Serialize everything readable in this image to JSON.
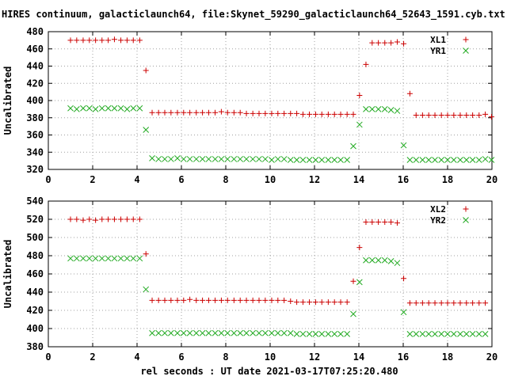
{
  "title": "HIRES continuum, galacticlaunch64, file:Skynet_59290_galacticlaunch64_52643_1591.cyb.txt",
  "xlabel": "rel seconds : UT date 2021-03-17T07:25:20.480",
  "colors": {
    "series_a": "#cc0000",
    "series_b": "#22aa22"
  },
  "chart_data": [
    {
      "type": "scatter",
      "ylabel": "Uncalibrated",
      "xlim": [
        0,
        20
      ],
      "ylim": [
        320,
        480
      ],
      "xticks": [
        0,
        2,
        4,
        6,
        8,
        10,
        12,
        14,
        16,
        18,
        20
      ],
      "yticks": [
        320,
        340,
        360,
        380,
        400,
        420,
        440,
        460,
        480
      ],
      "grid": true,
      "legend": "top-right",
      "series": [
        {
          "name": "XL1",
          "marker": "plus",
          "x": [
            1.0,
            1.28,
            1.57,
            1.85,
            2.13,
            2.42,
            2.7,
            2.98,
            3.27,
            3.55,
            3.83,
            4.12,
            4.4,
            4.68,
            4.97,
            5.25,
            5.53,
            5.82,
            6.1,
            6.38,
            6.67,
            6.95,
            7.23,
            7.52,
            7.8,
            8.08,
            8.37,
            8.65,
            8.93,
            9.22,
            9.5,
            9.78,
            10.07,
            10.35,
            10.63,
            10.92,
            11.2,
            11.48,
            11.77,
            12.05,
            12.33,
            12.62,
            12.9,
            13.18,
            13.47,
            13.75,
            14.03,
            14.32,
            14.6,
            14.88,
            15.17,
            15.45,
            15.73,
            16.02,
            16.3,
            16.58,
            16.87,
            17.15,
            17.43,
            17.72,
            18.0,
            18.28,
            18.57,
            18.85,
            19.13,
            19.42,
            19.7,
            19.98
          ],
          "y": [
            470,
            470,
            470,
            470,
            470,
            470,
            470,
            471,
            470,
            470,
            470,
            470,
            435,
            386,
            386,
            386,
            386,
            386,
            386,
            386,
            386,
            386,
            386,
            386,
            387,
            386,
            386,
            386,
            385,
            385,
            385,
            385,
            385,
            385,
            385,
            385,
            385,
            384,
            384,
            384,
            384,
            384,
            384,
            384,
            384,
            384,
            406,
            442,
            467,
            467,
            467,
            467,
            468,
            466,
            408,
            383,
            383,
            383,
            383,
            383,
            383,
            383,
            383,
            383,
            383,
            383,
            384,
            381
          ],
          "y_2": []
        },
        {
          "name": "YR1",
          "marker": "cross",
          "x": [
            1.0,
            1.28,
            1.57,
            1.85,
            2.13,
            2.42,
            2.7,
            2.98,
            3.27,
            3.55,
            3.83,
            4.12,
            4.4,
            4.68,
            4.97,
            5.25,
            5.53,
            5.82,
            6.1,
            6.38,
            6.67,
            6.95,
            7.23,
            7.52,
            7.8,
            8.08,
            8.37,
            8.65,
            8.93,
            9.22,
            9.5,
            9.78,
            10.07,
            10.35,
            10.63,
            10.92,
            11.2,
            11.48,
            11.77,
            12.05,
            12.33,
            12.62,
            12.9,
            13.18,
            13.47,
            13.75,
            14.03,
            14.32,
            14.6,
            14.88,
            15.17,
            15.45,
            15.73,
            16.02,
            16.3,
            16.58,
            16.87,
            17.15,
            17.43,
            17.72,
            18.0,
            18.28,
            18.57,
            18.85,
            19.13,
            19.42,
            19.7,
            19.98
          ],
          "y": [
            391,
            390,
            391,
            391,
            390,
            391,
            391,
            391,
            391,
            390,
            391,
            391,
            366,
            333,
            332,
            332,
            332,
            333,
            332,
            332,
            332,
            332,
            332,
            332,
            332,
            332,
            332,
            332,
            332,
            332,
            332,
            332,
            331,
            332,
            332,
            331,
            331,
            331,
            331,
            331,
            331,
            331,
            331,
            331,
            331,
            347,
            372,
            390,
            390,
            390,
            390,
            389,
            388,
            348,
            331,
            331,
            331,
            331,
            331,
            331,
            331,
            331,
            331,
            331,
            331,
            331,
            332,
            331
          ]
        }
      ]
    },
    {
      "type": "scatter",
      "ylabel": "Uncalibrated",
      "xlim": [
        0,
        20
      ],
      "ylim": [
        380,
        540
      ],
      "xticks": [
        0,
        2,
        4,
        6,
        8,
        10,
        12,
        14,
        16,
        18,
        20
      ],
      "yticks": [
        380,
        400,
        420,
        440,
        460,
        480,
        500,
        520,
        540
      ],
      "grid": true,
      "legend": "top-right",
      "series": [
        {
          "name": "XL2",
          "marker": "plus",
          "x": [
            1.0,
            1.28,
            1.57,
            1.85,
            2.13,
            2.42,
            2.7,
            2.98,
            3.27,
            3.55,
            3.83,
            4.12,
            4.4,
            4.68,
            4.97,
            5.25,
            5.53,
            5.82,
            6.1,
            6.38,
            6.67,
            6.95,
            7.23,
            7.52,
            7.8,
            8.08,
            8.37,
            8.65,
            8.93,
            9.22,
            9.5,
            9.78,
            10.07,
            10.35,
            10.63,
            10.92,
            11.2,
            11.48,
            11.77,
            12.05,
            12.33,
            12.62,
            12.9,
            13.18,
            13.47,
            13.75,
            14.03,
            14.32,
            14.6,
            14.88,
            15.17,
            15.45,
            15.73,
            16.02,
            16.3,
            16.58,
            16.87,
            17.15,
            17.43,
            17.72,
            18.0,
            18.28,
            18.57,
            18.85,
            19.13,
            19.42,
            19.7
          ],
          "y": [
            520,
            520,
            519,
            520,
            519,
            520,
            520,
            520,
            520,
            520,
            520,
            520,
            482,
            431,
            431,
            431,
            431,
            431,
            431,
            432,
            431,
            431,
            431,
            431,
            431,
            431,
            431,
            431,
            431,
            431,
            431,
            431,
            431,
            431,
            431,
            430,
            429,
            429,
            429,
            429,
            429,
            429,
            429,
            429,
            429,
            452,
            489,
            517,
            517,
            517,
            517,
            517,
            516,
            455,
            428,
            428,
            428,
            428,
            428,
            428,
            428,
            428,
            428,
            428,
            428,
            428,
            428
          ],
          "y_2": []
        },
        {
          "name": "YR2",
          "marker": "cross",
          "x": [
            1.0,
            1.28,
            1.57,
            1.85,
            2.13,
            2.42,
            2.7,
            2.98,
            3.27,
            3.55,
            3.83,
            4.12,
            4.4,
            4.68,
            4.97,
            5.25,
            5.53,
            5.82,
            6.1,
            6.38,
            6.67,
            6.95,
            7.23,
            7.52,
            7.8,
            8.08,
            8.37,
            8.65,
            8.93,
            9.22,
            9.5,
            9.78,
            10.07,
            10.35,
            10.63,
            10.92,
            11.2,
            11.48,
            11.77,
            12.05,
            12.33,
            12.62,
            12.9,
            13.18,
            13.47,
            13.75,
            14.03,
            14.32,
            14.6,
            14.88,
            15.17,
            15.45,
            15.73,
            16.02,
            16.3,
            16.58,
            16.87,
            17.15,
            17.43,
            17.72,
            18.0,
            18.28,
            18.57,
            18.85,
            19.13,
            19.42,
            19.7
          ],
          "y": [
            477,
            477,
            477,
            477,
            477,
            477,
            477,
            477,
            477,
            477,
            477,
            477,
            443,
            395,
            395,
            395,
            395,
            395,
            395,
            395,
            395,
            395,
            395,
            395,
            395,
            395,
            395,
            395,
            395,
            395,
            395,
            395,
            395,
            395,
            395,
            395,
            394,
            394,
            394,
            394,
            394,
            394,
            394,
            394,
            394,
            416,
            451,
            475,
            475,
            475,
            475,
            474,
            472,
            418,
            394,
            394,
            394,
            394,
            394,
            394,
            394,
            394,
            394,
            394,
            394,
            394,
            394
          ]
        }
      ]
    }
  ]
}
